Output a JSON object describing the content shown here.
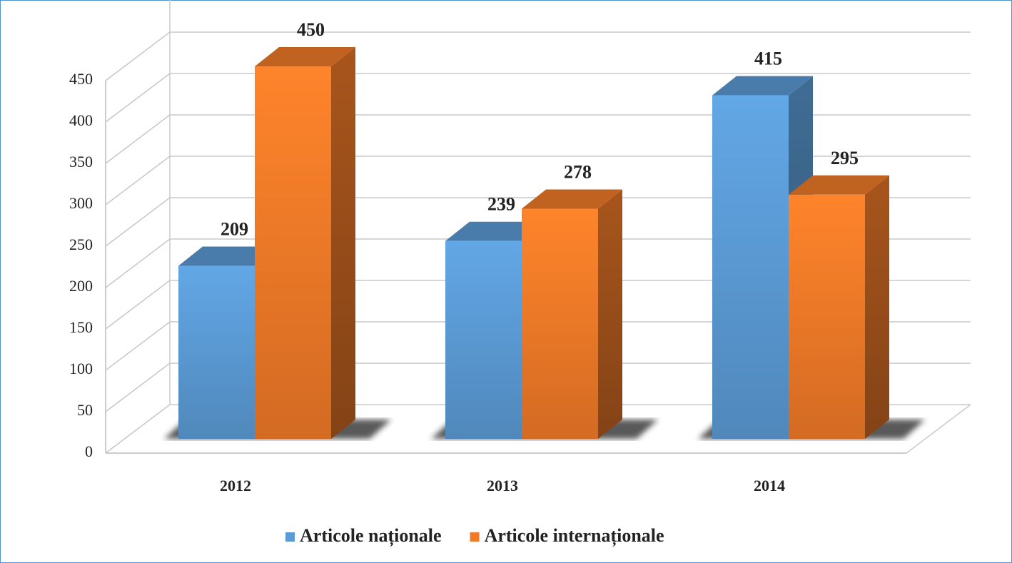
{
  "chart_data": {
    "type": "bar3d",
    "categories": [
      "2012",
      "2013",
      "2014"
    ],
    "series": [
      {
        "name": "Articole naționale",
        "color": "#5b9bd5",
        "values": [
          209,
          239,
          415
        ]
      },
      {
        "name": "Articole internaționale",
        "color": "#f07a28",
        "values": [
          450,
          278,
          295
        ]
      }
    ],
    "ylim": [
      0,
      450
    ],
    "yticks": [
      0,
      50,
      100,
      150,
      200,
      250,
      300,
      350,
      400,
      450
    ],
    "grid": true,
    "legend": "bottom"
  }
}
